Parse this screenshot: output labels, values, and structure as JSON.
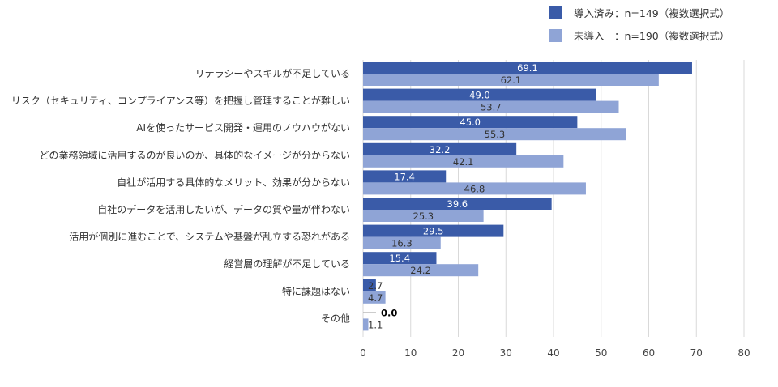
{
  "chart_data": {
    "type": "bar",
    "orientation": "horizontal",
    "categories": [
      "リテラシーやスキルが不足している",
      "リスク（セキュリティ、コンプライアンス等）を把握し管理することが難しい",
      "AIを使ったサービス開発・運用のノウハウがない",
      "どの業務領域に活用するのが良いのか、具体的なイメージが分からない",
      "自社が活用する具体的なメリット、効果が分からない",
      "自社のデータを活用したいが、データの質や量が伴わない",
      "活用が個別に進むことで、システムや基盤が乱立する恐れがある",
      "経営層の理解が不足している",
      "特に課題はない",
      "その他"
    ],
    "series": [
      {
        "name": "導入済み：n=149（複数選択式）",
        "color": "#3a5ba8",
        "values": [
          69.1,
          49.0,
          45.0,
          32.2,
          17.4,
          39.6,
          29.5,
          15.4,
          2.7,
          0.0
        ],
        "labels": [
          "69.1",
          "49.0",
          "45.0",
          "32.2",
          "17.4",
          "39.6",
          "29.5",
          "15.4",
          "2.7",
          "0.0"
        ]
      },
      {
        "name": "未導入　：n=190（複数選択式）",
        "color": "#8fa4d6",
        "values": [
          62.1,
          53.7,
          55.3,
          42.1,
          46.8,
          25.3,
          16.3,
          24.2,
          4.7,
          1.1
        ],
        "labels": [
          "62.1",
          "53.7",
          "55.3",
          "42.1",
          "46.8",
          "25.3",
          "16.3",
          "24.2",
          "4.7",
          "1.1"
        ]
      }
    ],
    "x_ticks": [
      "0",
      "10",
      "20",
      "30",
      "40",
      "50",
      "60",
      "70",
      "80"
    ],
    "xlim": [
      0,
      80
    ],
    "grid": "vertical",
    "legend_position": "top-right"
  }
}
